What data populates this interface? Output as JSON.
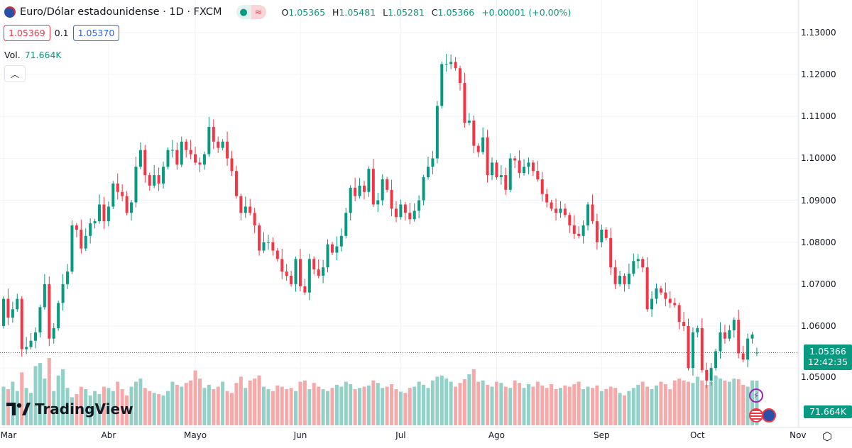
{
  "header": {
    "title": "Euro/Dólar estadounidense · 1D · FXCM",
    "market_open_icon": "green-dot-icon",
    "indicator_icon": "approx-equal-icon",
    "ohlc": {
      "o_label": "O",
      "o": "1.05365",
      "h_label": "H",
      "h": "1.05481",
      "l_label": "L",
      "l": "1.05281",
      "c_label": "C",
      "c": "1.05366",
      "change": "+0.00001 (+0.00%)"
    }
  },
  "trade": {
    "sell": "1.05369",
    "spread": "0.1",
    "buy": "1.05370"
  },
  "volume_legend": {
    "label": "Vol.",
    "value": "71.664K"
  },
  "price_label": {
    "price": "1.05366",
    "countdown": "12:42:35"
  },
  "volume_label": "71.664K",
  "logo": "TradingView",
  "colors": {
    "up": "#089981",
    "down": "#f23645",
    "up_volume": "#92d1c8",
    "down_volume": "#f7a9a9",
    "grid": "#f0f3fa"
  },
  "chart_data": {
    "type": "candlestick",
    "title": "Euro/Dólar estadounidense · 1D · FXCM",
    "ylim": [
      1.045,
      1.13
    ],
    "y_ticks": [
      "1.13000",
      "1.12000",
      "1.11000",
      "1.10000",
      "1.09000",
      "1.08000",
      "1.07000",
      "1.06000",
      "1.05000"
    ],
    "x_ticks": [
      "Mar",
      "Abr",
      "Mayo",
      "Jun",
      "Jul",
      "Ago",
      "Sep",
      "Oct",
      "Nov"
    ],
    "grid": true,
    "last_candle": {
      "open": 1.05365,
      "high": 1.05481,
      "low": 1.05281,
      "close": 1.05366,
      "volume": "71.664K"
    },
    "close": [
      1.0665,
      1.062,
      1.064,
      1.0665,
      1.0545,
      1.055,
      1.0565,
      1.0585,
      1.0645,
      1.07,
      1.057,
      1.0595,
      1.0655,
      1.07,
      1.073,
      1.084,
      1.083,
      1.0785,
      1.0815,
      1.0845,
      1.085,
      1.089,
      1.085,
      1.0885,
      1.094,
      1.092,
      1.091,
      1.087,
      1.0895,
      1.098,
      1.102,
      1.096,
      1.0935,
      1.096,
      1.094,
      1.098,
      1.102,
      1.102,
      1.0985,
      1.104,
      1.102,
      1.101,
      1.099,
      1.0985,
      1.101,
      1.1075,
      1.104,
      1.1025,
      1.104,
      1.1,
      1.097,
      1.091,
      1.087,
      1.0885,
      1.087,
      1.084,
      1.078,
      1.08,
      1.08,
      1.078,
      1.076,
      1.073,
      1.072,
      1.07,
      1.076,
      1.0695,
      1.068,
      1.076,
      1.0735,
      1.072,
      1.074,
      1.0795,
      1.0775,
      1.079,
      1.0815,
      1.087,
      1.093,
      1.091,
      1.0935,
      1.092,
      1.0975,
      1.089,
      1.09,
      1.095,
      1.0925,
      1.088,
      1.086,
      1.089,
      1.087,
      1.0855,
      1.0875,
      1.09,
      1.0955,
      1.098,
      1.1,
      1.1125,
      1.1225,
      1.1225,
      1.123,
      1.1215,
      1.118,
      1.1085,
      1.109,
      1.103,
      1.1015,
      1.105,
      1.096,
      1.099,
      1.0955,
      1.096,
      1.0925,
      1.1,
      1.0995,
      1.0965,
      1.098,
      1.099,
      1.097,
      1.095,
      1.0915,
      1.0895,
      1.088,
      1.087,
      1.088,
      1.0865,
      1.084,
      1.082,
      1.0815,
      1.084,
      1.089,
      1.085,
      1.08,
      1.083,
      1.081,
      1.074,
      1.07,
      1.072,
      1.07,
      1.0725,
      1.0755,
      1.076,
      1.074,
      1.064,
      1.0665,
      1.069,
      1.068,
      1.0665,
      1.0655,
      1.065,
      1.061,
      1.06,
      1.05,
      1.0585,
      1.0595,
      1.0495,
      1.047,
      1.05,
      1.054,
      1.0585,
      1.057,
      1.059,
      1.0615,
      1.0535,
      1.052,
      1.057,
      1.058,
      1.05366
    ],
    "volume_k": [
      62,
      58,
      70,
      55,
      85,
      60,
      52,
      95,
      100,
      75,
      108,
      55,
      80,
      90,
      60,
      45,
      50,
      62,
      58,
      48,
      55,
      50,
      62,
      60,
      55,
      70,
      58,
      48,
      62,
      70,
      75,
      60,
      55,
      52,
      50,
      48,
      55,
      70,
      65,
      62,
      68,
      72,
      88,
      75,
      60,
      65,
      58,
      62,
      70,
      55,
      52,
      68,
      78,
      60,
      72,
      75,
      80,
      62,
      58,
      55,
      64,
      62,
      58,
      60,
      55,
      70,
      72,
      58,
      68,
      62,
      58,
      55,
      60,
      65,
      62,
      70,
      66,
      58,
      60,
      62,
      64,
      72,
      68,
      60,
      62,
      66,
      58,
      54,
      52,
      60,
      62,
      70,
      65,
      60,
      72,
      78,
      80,
      75,
      70,
      62,
      68,
      74,
      82,
      90,
      70,
      72,
      65,
      62,
      70,
      68,
      62,
      60,
      72,
      68,
      60,
      66,
      62,
      70,
      64,
      60,
      66,
      58,
      60,
      64,
      62,
      66,
      70,
      58,
      62,
      60,
      64,
      55,
      58,
      62,
      60,
      52,
      48,
      55,
      60,
      65,
      70,
      62,
      58,
      64,
      70,
      66,
      58,
      72,
      75,
      72,
      70,
      68,
      78,
      72,
      65,
      70,
      80,
      75,
      72,
      70,
      75,
      74,
      65,
      62,
      72,
      71.664
    ]
  }
}
